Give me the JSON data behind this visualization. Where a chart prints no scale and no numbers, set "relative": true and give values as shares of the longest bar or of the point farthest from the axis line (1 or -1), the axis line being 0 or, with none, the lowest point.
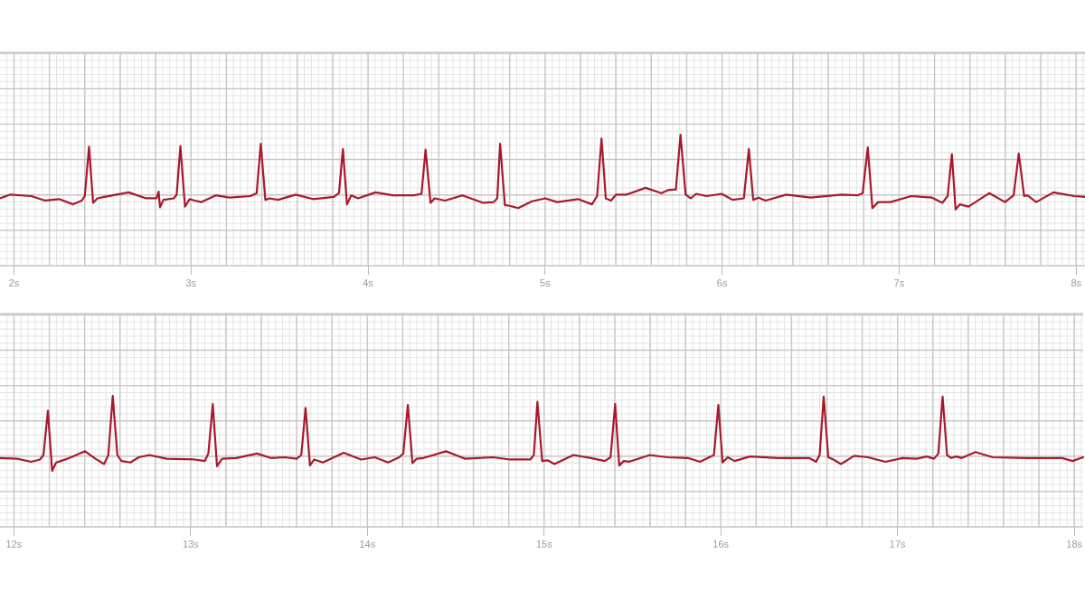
{
  "chart_data": [
    {
      "type": "line",
      "relative": true,
      "grid": true,
      "color": "#a8182a",
      "xlim": [
        1.921,
        8.05
      ],
      "xticks": [
        {
          "value": 2,
          "label": "2s"
        },
        {
          "value": 2.2,
          "label": null
        },
        {
          "value": 2.4,
          "label": null
        },
        {
          "value": 2.6,
          "label": null
        },
        {
          "value": 2.8,
          "label": null
        },
        {
          "value": 3,
          "label": "3s"
        },
        {
          "value": 3.2,
          "label": null
        },
        {
          "value": 3.4,
          "label": null
        },
        {
          "value": 3.6,
          "label": null
        },
        {
          "value": 3.8,
          "label": null
        },
        {
          "value": 4,
          "label": "4s"
        },
        {
          "value": 4.2,
          "label": null
        },
        {
          "value": 4.4,
          "label": null
        },
        {
          "value": 4.6,
          "label": null
        },
        {
          "value": 4.8,
          "label": null
        },
        {
          "value": 5,
          "label": "5s"
        },
        {
          "value": 5.2,
          "label": null
        },
        {
          "value": 5.4,
          "label": null
        },
        {
          "value": 5.6,
          "label": null
        },
        {
          "value": 5.8,
          "label": null
        },
        {
          "value": 6,
          "label": "6s"
        },
        {
          "value": 6.2,
          "label": null
        },
        {
          "value": 6.4,
          "label": null
        },
        {
          "value": 6.6,
          "label": null
        },
        {
          "value": 6.8,
          "label": null
        },
        {
          "value": 7,
          "label": "7s"
        },
        {
          "value": 7.2,
          "label": null
        },
        {
          "value": 7.4,
          "label": null
        },
        {
          "value": 7.6,
          "label": null
        },
        {
          "value": 7.8,
          "label": null
        },
        {
          "value": 8,
          "label": "8s"
        }
      ],
      "x": [
        1.921,
        1.98,
        2.098,
        2.176,
        2.255,
        2.334,
        2.383,
        2.4,
        2.424,
        2.447,
        2.471,
        2.51,
        2.648,
        2.746,
        2.805,
        2.817,
        2.825,
        2.844,
        2.903,
        2.919,
        2.94,
        2.966,
        2.992,
        3.021,
        3.06,
        3.139,
        3.217,
        3.335,
        3.371,
        3.394,
        3.42,
        3.443,
        3.492,
        3.591,
        3.689,
        3.807,
        3.836,
        3.858,
        3.881,
        3.905,
        3.944,
        4.042,
        4.141,
        4.258,
        4.302,
        4.325,
        4.353,
        4.376,
        4.435,
        4.533,
        4.651,
        4.71,
        4.73,
        4.746,
        4.773,
        4.799,
        4.848,
        4.926,
        5.001,
        5.068,
        5.186,
        5.265,
        5.294,
        5.319,
        5.343,
        5.372,
        5.402,
        5.461,
        5.568,
        5.657,
        5.696,
        5.739,
        5.765,
        5.794,
        5.823,
        5.853,
        5.912,
        5.998,
        6.059,
        6.123,
        6.151,
        6.176,
        6.206,
        6.245,
        6.363,
        6.5,
        6.676,
        6.765,
        6.794,
        6.823,
        6.849,
        6.882,
        6.951,
        7.068,
        7.186,
        7.245,
        7.274,
        7.298,
        7.319,
        7.343,
        7.392,
        7.51,
        7.598,
        7.647,
        7.676,
        7.706,
        7.725,
        7.774,
        7.872,
        7.99,
        8.05
      ],
      "values": [
        0.15,
        0.2,
        0.18,
        0.12,
        0.14,
        0.07,
        0.12,
        0.18,
        0.84,
        0.09,
        0.15,
        0.17,
        0.23,
        0.15,
        0.15,
        0.24,
        0.03,
        0.13,
        0.15,
        0.2,
        0.85,
        0.04,
        0.14,
        0.12,
        0.1,
        0.19,
        0.16,
        0.18,
        0.22,
        0.88,
        0.13,
        0.15,
        0.13,
        0.2,
        0.14,
        0.17,
        0.22,
        0.81,
        0.07,
        0.19,
        0.15,
        0.23,
        0.19,
        0.19,
        0.21,
        0.8,
        0.09,
        0.15,
        0.12,
        0.19,
        0.09,
        0.1,
        0.15,
        0.88,
        0.06,
        0.05,
        0.02,
        0.11,
        0.15,
        0.1,
        0.14,
        0.07,
        0.18,
        0.95,
        0.15,
        0.12,
        0.2,
        0.2,
        0.29,
        0.22,
        0.26,
        0.27,
        1,
        0.2,
        0.15,
        0.21,
        0.18,
        0.21,
        0.13,
        0.15,
        0.81,
        0.13,
        0.16,
        0.12,
        0.2,
        0.16,
        0.2,
        0.19,
        0.22,
        0.83,
        0.02,
        0.1,
        0.1,
        0.18,
        0.16,
        0.09,
        0.18,
        0.74,
        0,
        0.07,
        0.04,
        0.22,
        0.1,
        0.19,
        0.75,
        0.18,
        0.19,
        0.1,
        0.23,
        0.18,
        0.17
      ]
    },
    {
      "type": "line",
      "relative": true,
      "grid": true,
      "color": "#a8182a",
      "xlim": [
        11.921,
        18.05
      ],
      "xticks": [
        {
          "value": 12,
          "label": "12s"
        },
        {
          "value": 12.2,
          "label": null
        },
        {
          "value": 12.4,
          "label": null
        },
        {
          "value": 12.6,
          "label": null
        },
        {
          "value": 12.8,
          "label": null
        },
        {
          "value": 13,
          "label": "13s"
        },
        {
          "value": 13.2,
          "label": null
        },
        {
          "value": 13.4,
          "label": null
        },
        {
          "value": 13.6,
          "label": null
        },
        {
          "value": 13.8,
          "label": null
        },
        {
          "value": 14,
          "label": "14s"
        },
        {
          "value": 14.2,
          "label": null
        },
        {
          "value": 14.4,
          "label": null
        },
        {
          "value": 14.6,
          "label": null
        },
        {
          "value": 14.8,
          "label": null
        },
        {
          "value": 15,
          "label": "15s"
        },
        {
          "value": 15.2,
          "label": null
        },
        {
          "value": 15.4,
          "label": null
        },
        {
          "value": 15.6,
          "label": null
        },
        {
          "value": 15.8,
          "label": null
        },
        {
          "value": 16,
          "label": "16s"
        },
        {
          "value": 16.2,
          "label": null
        },
        {
          "value": 16.4,
          "label": null
        },
        {
          "value": 16.6,
          "label": null
        },
        {
          "value": 16.8,
          "label": null
        },
        {
          "value": 17,
          "label": "17s"
        },
        {
          "value": 17.2,
          "label": null
        },
        {
          "value": 17.4,
          "label": null
        },
        {
          "value": 17.6,
          "label": null
        },
        {
          "value": 17.8,
          "label": null
        },
        {
          "value": 18,
          "label": "18s"
        }
      ],
      "x": [
        11.921,
        12.019,
        12.098,
        12.147,
        12.167,
        12.192,
        12.216,
        12.239,
        12.265,
        12.314,
        12.402,
        12.461,
        12.51,
        12.534,
        12.559,
        12.585,
        12.608,
        12.658,
        12.707,
        12.766,
        12.864,
        13.021,
        13.08,
        13.1,
        13.125,
        13.149,
        13.178,
        13.257,
        13.375,
        13.453,
        13.532,
        13.6,
        13.626,
        13.65,
        13.675,
        13.699,
        13.748,
        13.866,
        13.964,
        14.042,
        14.117,
        14.18,
        14.203,
        14.229,
        14.255,
        14.278,
        14.317,
        14.445,
        14.553,
        14.71,
        14.808,
        14.922,
        14.942,
        14.962,
        14.989,
        15.019,
        15.059,
        15.166,
        15.265,
        15.343,
        15.376,
        15.402,
        15.425,
        15.451,
        15.48,
        15.598,
        15.696,
        15.814,
        15.882,
        15.961,
        15.986,
        16.01,
        16.039,
        16.078,
        16.166,
        16.323,
        16.5,
        16.539,
        16.559,
        16.582,
        16.608,
        16.637,
        16.68,
        16.755,
        16.833,
        16.931,
        17.029,
        17.108,
        17.166,
        17.206,
        17.231,
        17.255,
        17.28,
        17.304,
        17.333,
        17.363,
        17.441,
        17.539,
        17.735,
        17.931,
        17.99,
        18.05
      ],
      "values": [
        0.17,
        0.16,
        0.12,
        0.15,
        0.21,
        0.8,
        0,
        0.11,
        0.13,
        0.17,
        0.26,
        0.16,
        0.09,
        0.21,
        1,
        0.21,
        0.13,
        0.11,
        0.18,
        0.21,
        0.16,
        0.15,
        0.13,
        0.23,
        0.89,
        0.06,
        0.16,
        0.17,
        0.23,
        0.17,
        0.18,
        0.16,
        0.21,
        0.84,
        0.07,
        0.15,
        0.11,
        0.24,
        0.15,
        0.18,
        0.11,
        0.18,
        0.23,
        0.88,
        0.1,
        0.16,
        0.17,
        0.26,
        0.16,
        0.18,
        0.15,
        0.15,
        0.21,
        0.92,
        0.13,
        0.14,
        0.09,
        0.21,
        0.17,
        0.13,
        0.18,
        0.89,
        0.07,
        0.13,
        0.12,
        0.21,
        0.18,
        0.17,
        0.12,
        0.21,
        0.88,
        0.11,
        0.18,
        0.13,
        0.19,
        0.17,
        0.17,
        0.12,
        0.21,
        0.99,
        0.18,
        0.15,
        0.09,
        0.2,
        0.18,
        0.12,
        0.17,
        0.16,
        0.19,
        0.16,
        0.23,
        0.99,
        0.21,
        0.17,
        0.19,
        0.17,
        0.25,
        0.18,
        0.17,
        0.17,
        0.13,
        0.18
      ]
    }
  ]
}
